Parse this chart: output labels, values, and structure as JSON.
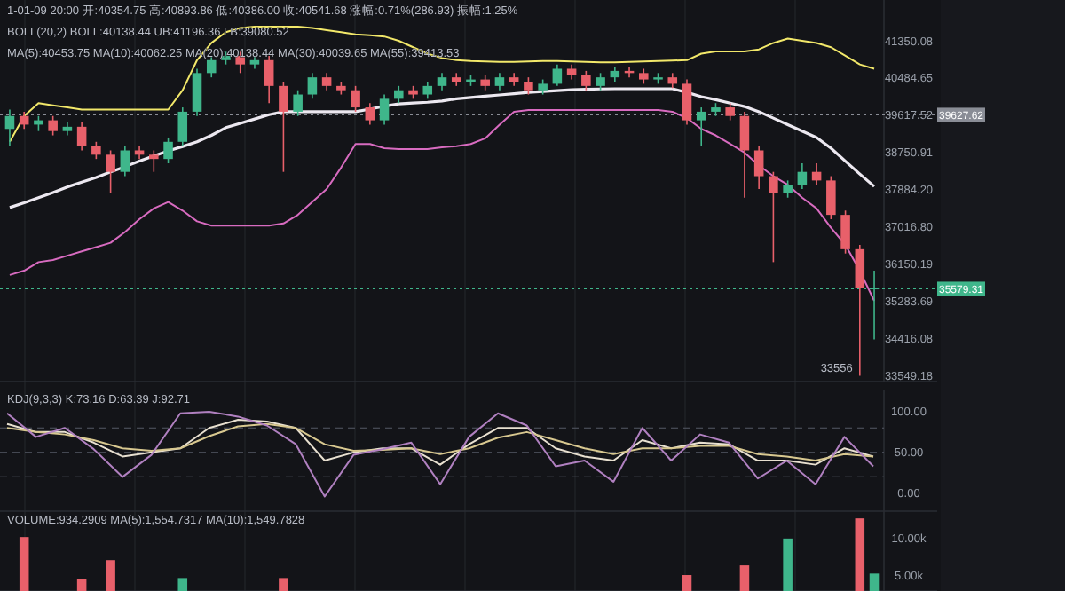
{
  "chart_data": [
    {
      "type": "candlestick",
      "categories": [
        null,
        null,
        null,
        null,
        null,
        null,
        null,
        null,
        null,
        null,
        null,
        null,
        null,
        null,
        null,
        null,
        null,
        null,
        null,
        null,
        null,
        null,
        null,
        null,
        null,
        null,
        null,
        null,
        null,
        null,
        null,
        null,
        null,
        null,
        null,
        null,
        null,
        null,
        null,
        null,
        null,
        null,
        null,
        null,
        null,
        null,
        null,
        null,
        null,
        null,
        null,
        null,
        null,
        null,
        null,
        null,
        null,
        null,
        null,
        null,
        null
      ],
      "ohlc": [
        [
          39300,
          39750,
          38900,
          39600
        ],
        [
          39600,
          39700,
          39300,
          39400
        ],
        [
          39400,
          39600,
          39250,
          39500
        ],
        [
          39500,
          39600,
          39150,
          39250
        ],
        [
          39250,
          39450,
          39150,
          39350
        ],
        [
          39350,
          39450,
          38800,
          38900
        ],
        [
          38900,
          39000,
          38600,
          38700
        ],
        [
          38700,
          38800,
          37800,
          38300
        ],
        [
          38300,
          38900,
          38200,
          38800
        ],
        [
          38800,
          38900,
          38600,
          38700
        ],
        [
          38700,
          38800,
          38300,
          38600
        ],
        [
          38600,
          39100,
          38500,
          39000
        ],
        [
          39000,
          39800,
          38900,
          39700
        ],
        [
          39700,
          40700,
          39600,
          40600
        ],
        [
          40600,
          41000,
          40500,
          40900
        ],
        [
          40900,
          41100,
          40800,
          41000
        ],
        [
          41000,
          41100,
          40600,
          40800
        ],
        [
          40800,
          41000,
          40700,
          40900
        ],
        [
          40900,
          41000,
          39900,
          40300
        ],
        [
          40300,
          40400,
          38300,
          39700
        ],
        [
          39700,
          40200,
          39600,
          40100
        ],
        [
          40100,
          40600,
          40000,
          40500
        ],
        [
          40500,
          40600,
          40200,
          40300
        ],
        [
          40300,
          40400,
          40100,
          40200
        ],
        [
          40200,
          40300,
          39700,
          39800
        ],
        [
          39800,
          39900,
          39400,
          39500
        ],
        [
          39500,
          40100,
          39400,
          40000
        ],
        [
          40000,
          40300,
          39900,
          40200
        ],
        [
          40200,
          40300,
          40000,
          40100
        ],
        [
          40100,
          40400,
          40000,
          40300
        ],
        [
          40300,
          40600,
          40200,
          40500
        ],
        [
          40500,
          40600,
          40300,
          40400
        ],
        [
          40400,
          40550,
          40300,
          40450
        ],
        [
          40450,
          40550,
          40200,
          40300
        ],
        [
          40300,
          40600,
          40200,
          40500
        ],
        [
          40500,
          40600,
          40300,
          40400
        ],
        [
          40400,
          40500,
          40100,
          40200
        ],
        [
          40200,
          40450,
          40100,
          40350
        ],
        [
          40350,
          40800,
          40300,
          40700
        ],
        [
          40700,
          40800,
          40450,
          40550
        ],
        [
          40550,
          40650,
          40200,
          40300
        ],
        [
          40300,
          40600,
          40200,
          40500
        ],
        [
          40500,
          40750,
          40400,
          40650
        ],
        [
          40650,
          40750,
          40500,
          40600
        ],
        [
          40600,
          40700,
          40350,
          40450
        ],
        [
          40450,
          40600,
          40350,
          40500
        ],
        [
          40500,
          40600,
          40250,
          40350
        ],
        [
          40350,
          40450,
          39400,
          39500
        ],
        [
          39500,
          39800,
          38900,
          39700
        ],
        [
          39700,
          39900,
          39600,
          39800
        ],
        [
          39800,
          39900,
          39500,
          39600
        ],
        [
          39600,
          39700,
          37700,
          38800
        ],
        [
          38800,
          38900,
          37900,
          38200
        ],
        [
          38200,
          38300,
          36200,
          37800
        ],
        [
          37800,
          38100,
          37700,
          38000
        ],
        [
          38000,
          38500,
          37900,
          38300
        ],
        [
          38300,
          38500,
          38000,
          38100
        ],
        [
          38100,
          38200,
          37200,
          37300
        ],
        [
          37300,
          37400,
          36400,
          36500
        ],
        [
          36500,
          36600,
          33556,
          35600
        ],
        [
          35600,
          36000,
          34400,
          35579.31
        ]
      ],
      "series": [
        {
          "type": "line",
          "color": "#f2e86a",
          "values": [
            39000,
            39600,
            39900,
            39850,
            39800,
            39750,
            39750,
            39750,
            39750,
            39750,
            39750,
            39750,
            40200,
            40900,
            41300,
            41550,
            41650,
            41680,
            41680,
            41680,
            41680,
            41650,
            41600,
            41550,
            41500,
            41480,
            41450,
            41350,
            41200,
            41050,
            40950,
            40900,
            40880,
            40870,
            40860,
            40860,
            40870,
            40880,
            40880,
            40870,
            40860,
            40850,
            40850,
            40860,
            40870,
            40880,
            40890,
            40900,
            41050,
            41100,
            41100,
            41100,
            41150,
            41300,
            41400,
            41350,
            41300,
            41200,
            41000,
            40800,
            40700
          ]
        },
        {
          "type": "line",
          "color": "#ece8f0",
          "values": [
            37470,
            37580,
            37700,
            37820,
            37950,
            38060,
            38170,
            38300,
            38420,
            38550,
            38670,
            38790,
            38890,
            39000,
            39150,
            39330,
            39430,
            39530,
            39630,
            39700,
            39700,
            39700,
            39700,
            39700,
            39700,
            39760,
            39830,
            39880,
            39900,
            39920,
            39950,
            40000,
            40030,
            40060,
            40090,
            40120,
            40150,
            40170,
            40190,
            40210,
            40220,
            40230,
            40235,
            40235,
            40235,
            40235,
            40235,
            40150,
            40050,
            39980,
            39900,
            39820,
            39700,
            39550,
            39400,
            39250,
            39100,
            38850,
            38550,
            38250,
            37960
          ]
        },
        {
          "type": "line",
          "color": "#d86bc0",
          "values": [
            35900,
            36000,
            36200,
            36250,
            36350,
            36450,
            36550,
            36650,
            36900,
            37200,
            37450,
            37600,
            37400,
            37150,
            37050,
            37050,
            37050,
            37050,
            37050,
            37100,
            37300,
            37600,
            37900,
            38400,
            38950,
            38950,
            38850,
            38830,
            38830,
            38830,
            38870,
            38900,
            38950,
            39080,
            39400,
            39700,
            39740,
            39740,
            39740,
            39740,
            39740,
            39740,
            39740,
            39740,
            39740,
            39740,
            39700,
            39550,
            39300,
            39150,
            38950,
            38750,
            38450,
            38200,
            38000,
            37700,
            37450,
            37000,
            36600,
            36000,
            35300
          ]
        }
      ],
      "colors": [
        "#3fb68b",
        "#e8606a",
        "#3fb68b",
        "#e8606a",
        "#3fb68b",
        "#e8606a",
        "#e8606a",
        "#e8606a",
        "#3fb68b",
        "#e8606a",
        "#e8606a",
        "#3fb68b",
        "#3fb68b",
        "#3fb68b",
        "#3fb68b",
        "#3fb68b",
        "#e8606a",
        "#3fb68b",
        "#e8606a",
        "#e8606a",
        "#3fb68b",
        "#3fb68b",
        "#e8606a",
        "#e8606a",
        "#e8606a",
        "#e8606a",
        "#3fb68b",
        "#3fb68b",
        "#e8606a",
        "#3fb68b",
        "#3fb68b",
        "#e8606a",
        "#3fb68b",
        "#e8606a",
        "#3fb68b",
        "#e8606a",
        "#e8606a",
        "#3fb68b",
        "#3fb68b",
        "#e8606a",
        "#e8606a",
        "#3fb68b",
        "#3fb68b",
        "#e8606a",
        "#e8606a",
        "#3fb68b",
        "#e8606a",
        "#e8606a",
        "#3fb68b",
        "#3fb68b",
        "#e8606a",
        "#e8606a",
        "#e8606a",
        "#e8606a",
        "#3fb68b",
        "#3fb68b",
        "#e8606a",
        "#e8606a",
        "#e8606a",
        "#e8606a",
        "#3fb68b"
      ],
      "ylim": [
        33420,
        42300
      ],
      "yticks": [
        {
          "value": 41350.08,
          "label": "41350.08"
        },
        {
          "value": 40484.65,
          "label": "40484.65"
        },
        {
          "value": 39617.52,
          "label": "39617.52"
        },
        {
          "value": 38750.91,
          "label": "38750.91"
        },
        {
          "value": 37884.2,
          "label": "37884.20"
        },
        {
          "value": 37016.8,
          "label": "37016.80"
        },
        {
          "value": 36150.19,
          "label": "36150.19"
        },
        {
          "value": 35283.69,
          "label": "35283.69"
        },
        {
          "value": 34416.08,
          "label": "34416.08"
        },
        {
          "value": 33549.18,
          "label": "33549.18"
        }
      ],
      "tick_labels": "y",
      "grid": "x",
      "ref_lines": [
        {
          "axis": "y",
          "value": 35579.31,
          "label": "35579.31",
          "color": "#3fb68b",
          "line_style": "dotted"
        },
        {
          "axis": "y",
          "value": 39627.62,
          "label": "39627.62",
          "color": "#8a8d96",
          "line_style": "dotted"
        }
      ],
      "annotations": [
        "1-01-09 20:00 开:40354.75 高:40893.86 低:40386.00 收:40541.68 涨幅:0.71%(286.93) 振幅:1.25%",
        "BOLL(20,2) BOLL:40138.44 UB:41196.36 LB:39080.52",
        "MA(5):40453.75 MA(10):40062.25 MA(20):40138.44 MA(30):40039.65 MA(55):39413.53",
        "33556"
      ]
    },
    {
      "type": "line",
      "title": "KDJ(9,3,3) K:73.16 D:63.39 J:92.71",
      "categories": [
        null,
        null,
        null,
        null,
        null,
        null,
        null,
        null,
        null,
        null,
        null,
        null,
        null,
        null,
        null,
        null,
        null,
        null,
        null,
        null,
        null,
        null,
        null,
        null,
        null,
        null,
        null,
        null,
        null,
        null,
        null
      ],
      "series": [
        {
          "color": "#e8e0d0",
          "values": [
            85,
            75,
            75,
            62,
            45,
            50,
            55,
            80,
            90,
            88,
            80,
            40,
            50,
            55,
            55,
            35,
            60,
            80,
            80,
            55,
            45,
            40,
            65,
            55,
            62,
            60,
            40,
            40,
            35,
            55,
            45
          ]
        },
        {
          "color": "#d8c890",
          "values": [
            80,
            75,
            72,
            65,
            55,
            52,
            55,
            70,
            82,
            85,
            80,
            60,
            52,
            53,
            55,
            48,
            55,
            68,
            75,
            65,
            55,
            48,
            55,
            55,
            58,
            58,
            48,
            45,
            40,
            48,
            45
          ]
        },
        {
          "color": "#b080c0",
          "values": [
            98,
            69,
            80,
            54,
            20,
            47,
            98,
            100,
            94,
            83,
            60,
            -4,
            47,
            54,
            62,
            11,
            69,
            98,
            83,
            33,
            40,
            14,
            80,
            40,
            72,
            62,
            18,
            40,
            11,
            69,
            33
          ]
        }
      ],
      "ylim": [
        -22,
        126
      ],
      "yticks": [
        {
          "value": 100,
          "label": "100.00"
        },
        {
          "value": 50,
          "label": "50.00"
        },
        {
          "value": 0,
          "label": "0.00"
        }
      ],
      "tick_labels": "y",
      "ref_lines": [
        {
          "axis": "y",
          "value": 80,
          "line_style": "dashed"
        },
        {
          "axis": "y",
          "value": 50,
          "line_style": "dashed"
        },
        {
          "axis": "y",
          "value": 20,
          "line_style": "dashed"
        }
      ]
    },
    {
      "type": "bar",
      "title": "VOLUME:934.2909 MA(5):1,554.7317 MA(10):1,549.7828",
      "categories": [
        null,
        null,
        null,
        null,
        null,
        null,
        null,
        null,
        null,
        null,
        null,
        null,
        null,
        null,
        null,
        null,
        null,
        null,
        null,
        null,
        null,
        null,
        null,
        null,
        null,
        null,
        null,
        null,
        null,
        null,
        null,
        null,
        null,
        null,
        null,
        null,
        null,
        null,
        null,
        null,
        null,
        null,
        null,
        null,
        null,
        null,
        null,
        null,
        null,
        null,
        null,
        null,
        null,
        null,
        null,
        null,
        null,
        null,
        null,
        null,
        null
      ],
      "values": [
        null,
        10100,
        null,
        null,
        null,
        4500,
        null,
        7000,
        null,
        null,
        null,
        null,
        4600,
        null,
        null,
        null,
        null,
        null,
        null,
        4600,
        null,
        null,
        null,
        null,
        null,
        null,
        null,
        null,
        null,
        null,
        null,
        null,
        null,
        null,
        null,
        null,
        null,
        null,
        null,
        null,
        null,
        null,
        null,
        null,
        null,
        null,
        null,
        5000,
        null,
        null,
        null,
        6300,
        null,
        null,
        9900,
        null,
        null,
        null,
        null,
        12600,
        5200
      ],
      "colors": [
        null,
        "#e8606a",
        null,
        null,
        null,
        "#e8606a",
        null,
        "#e8606a",
        null,
        null,
        null,
        null,
        "#3fb68b",
        null,
        null,
        null,
        null,
        null,
        null,
        "#e8606a",
        null,
        null,
        null,
        null,
        null,
        null,
        null,
        null,
        null,
        null,
        null,
        null,
        null,
        null,
        null,
        null,
        null,
        null,
        null,
        null,
        null,
        null,
        null,
        null,
        null,
        null,
        null,
        "#e8606a",
        null,
        null,
        null,
        "#e8606a",
        null,
        null,
        "#3fb68b",
        null,
        null,
        null,
        null,
        "#e8606a",
        "#3fb68b"
      ],
      "ylim": [
        2860,
        13570
      ],
      "yticks": [
        {
          "value": 5000,
          "label": "5.00k"
        },
        {
          "value": 10000,
          "label": "10.00k"
        }
      ],
      "tick_labels": "y"
    }
  ]
}
